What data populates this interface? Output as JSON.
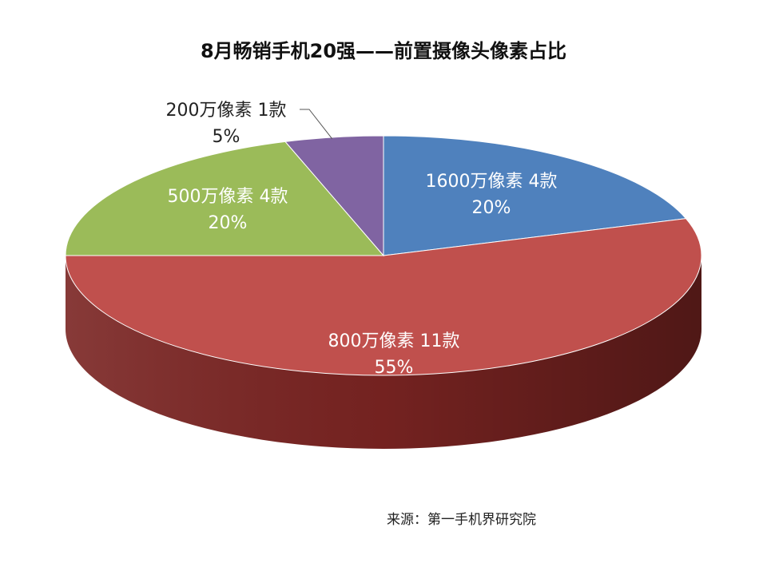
{
  "chart_data": {
    "type": "pie",
    "title": "8月畅销手机20强——前置摄像头像素占比",
    "slices": [
      {
        "label": "1600万像素 4款",
        "count": 4,
        "percent_label": "20%",
        "value": 20,
        "color": "#4F81BD",
        "side_color": "#2E4F78"
      },
      {
        "label": "800万像素 11款",
        "count": 11,
        "percent_label": "55%",
        "value": 55,
        "color": "#C0504D",
        "side_color": "#7A2422"
      },
      {
        "label": "500万像素 4款",
        "count": 4,
        "percent_label": "20%",
        "value": 20,
        "color": "#9BBB59",
        "side_color": "#5E7A2C"
      },
      {
        "label": "200万像素 1款",
        "count": 1,
        "percent_label": "5%",
        "value": 5,
        "color": "#8064A2",
        "side_color": "#4C3566"
      }
    ]
  },
  "source": "来源：第一手机界研究院"
}
